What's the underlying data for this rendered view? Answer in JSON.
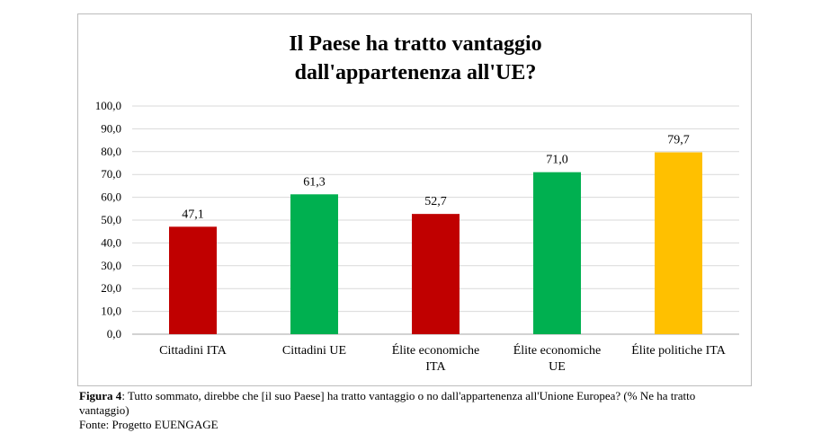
{
  "chart_data": {
    "type": "bar",
    "title": [
      "Il Paese ha tratto vantaggio",
      "dall'appartenenza all'UE?"
    ],
    "categories": [
      [
        "Cittadini ITA"
      ],
      [
        "Cittadini UE"
      ],
      [
        "Élite economiche",
        "ITA"
      ],
      [
        "Élite economiche",
        "UE"
      ],
      [
        "Élite politiche ITA"
      ]
    ],
    "values": [
      47.1,
      61.3,
      52.7,
      71.0,
      79.7
    ],
    "value_labels": [
      "47,1",
      "61,3",
      "52,7",
      "71,0",
      "79,7"
    ],
    "colors": [
      "#c00000",
      "#00b050",
      "#c00000",
      "#00b050",
      "#ffc000"
    ],
    "ylim": [
      0,
      100
    ],
    "yticks": [
      0,
      10,
      20,
      30,
      40,
      50,
      60,
      70,
      80,
      90,
      100
    ],
    "ytick_labels": [
      "0,0",
      "10,0",
      "20,0",
      "30,0",
      "40,0",
      "50,0",
      "60,0",
      "70,0",
      "80,0",
      "90,0",
      "100,0"
    ],
    "grid": true,
    "xlabel": "",
    "ylabel": ""
  },
  "caption": {
    "label": "Figura 4",
    "text": ": Tutto sommato, direbbe che [il suo Paese] ha tratto vantaggio o no dall'appartenenza all'Unione Europea? (% Ne ha tratto vantaggio)",
    "source": "Fonte: Progetto EUENGAGE"
  }
}
